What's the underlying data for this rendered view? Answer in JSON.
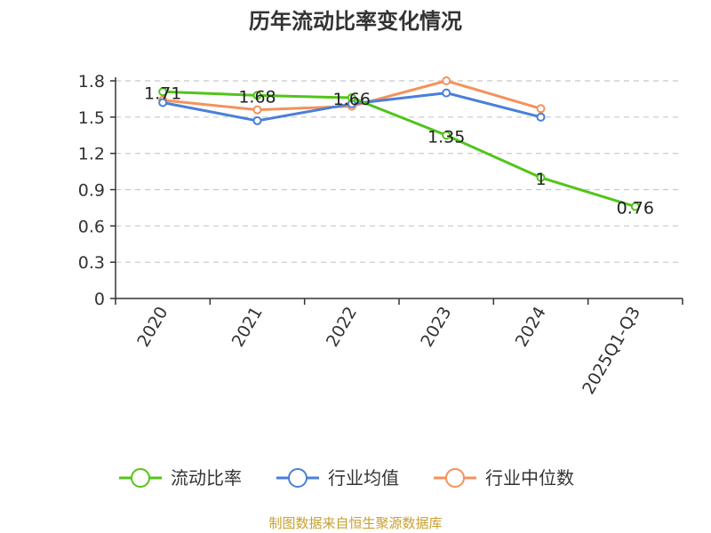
{
  "chart_data": {
    "type": "line",
    "title": "历年流动比率变化情况",
    "categories": [
      "2020",
      "2021",
      "2022",
      "2023",
      "2024",
      "2025Q1-Q3"
    ],
    "ylim": [
      0,
      1.8
    ],
    "yticks": [
      "0",
      "0.3",
      "0.6",
      "0.9",
      "1.2",
      "1.5",
      "1.8"
    ],
    "grid": true,
    "legend_position": "bottom",
    "series": [
      {
        "name": "流动比率",
        "color": "#52c41a",
        "values": [
          1.71,
          1.68,
          1.66,
          1.35,
          1.0,
          0.76
        ],
        "labels": [
          "1.71",
          "1.68",
          "1.66",
          "1.35",
          "1",
          "0.76"
        ]
      },
      {
        "name": "行业均值",
        "color": "#4a7fd9",
        "values": [
          1.62,
          1.47,
          1.61,
          1.7,
          1.5,
          null
        ]
      },
      {
        "name": "行业中位数",
        "color": "#f4925c",
        "values": [
          1.64,
          1.56,
          1.59,
          1.8,
          1.57,
          null
        ]
      }
    ],
    "source": "制图数据来自恒生聚源数据库",
    "source_color": "#c8a030"
  }
}
